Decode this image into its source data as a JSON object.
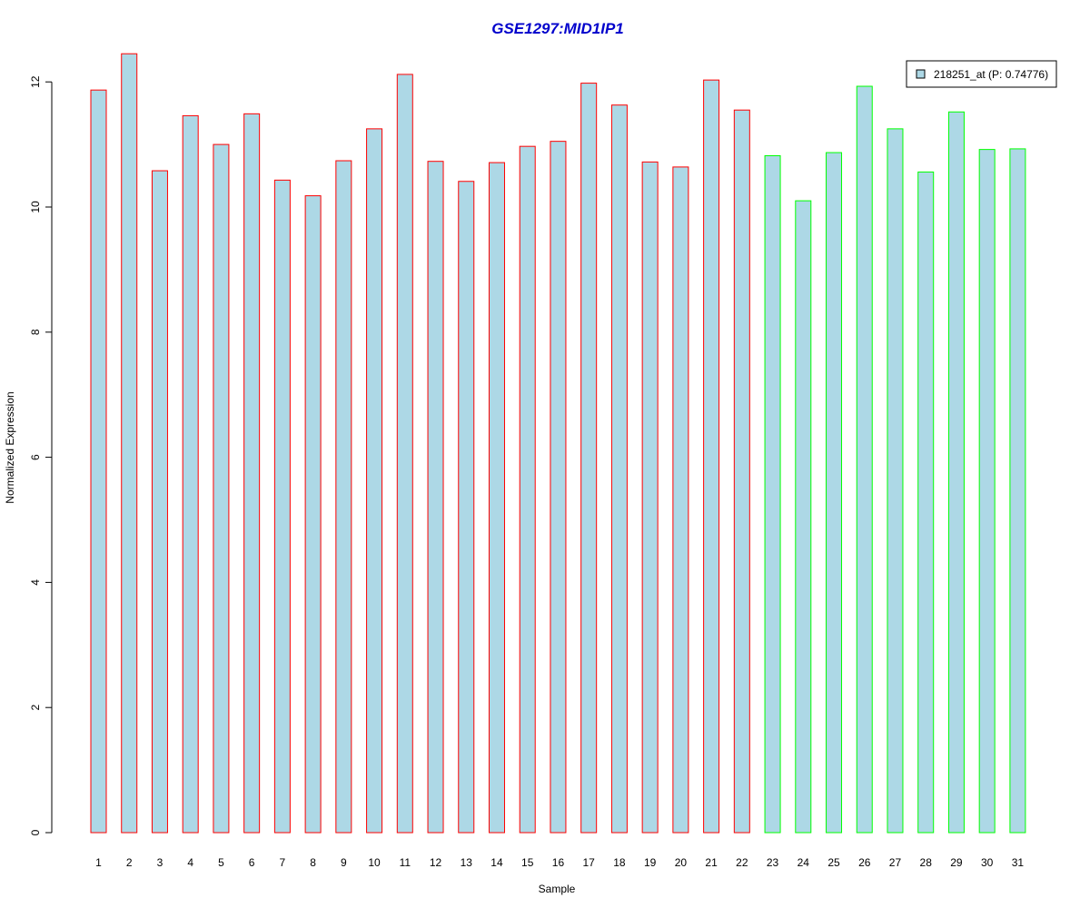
{
  "chart_data": {
    "type": "bar",
    "title": "GSE1297:MID1IP1",
    "xlabel": "Sample",
    "ylabel": "Normalized Expression",
    "ylim": [
      0,
      12.4
    ],
    "y_ticks": [
      0,
      2,
      4,
      6,
      8,
      10,
      12
    ],
    "categories": [
      "1",
      "2",
      "3",
      "4",
      "5",
      "6",
      "7",
      "8",
      "9",
      "10",
      "11",
      "12",
      "13",
      "14",
      "15",
      "16",
      "17",
      "18",
      "19",
      "20",
      "21",
      "22",
      "23",
      "24",
      "25",
      "26",
      "27",
      "28",
      "29",
      "30",
      "31"
    ],
    "values": [
      11.87,
      12.45,
      10.58,
      11.46,
      11.0,
      11.49,
      10.43,
      10.18,
      10.74,
      11.25,
      12.12,
      10.73,
      10.41,
      10.71,
      10.97,
      11.05,
      11.98,
      11.63,
      10.72,
      10.64,
      12.03,
      11.55,
      10.82,
      10.1,
      10.87,
      11.93,
      11.25,
      10.56,
      11.52,
      10.92,
      10.93
    ],
    "groups": [
      "red",
      "red",
      "red",
      "red",
      "red",
      "red",
      "red",
      "red",
      "red",
      "red",
      "red",
      "red",
      "red",
      "red",
      "red",
      "red",
      "red",
      "red",
      "red",
      "red",
      "red",
      "red",
      "green",
      "green",
      "green",
      "green",
      "green",
      "green",
      "green",
      "green",
      "green"
    ],
    "grid": false,
    "legend": {
      "position": "top-right",
      "entries": [
        {
          "label": "218251_at (P: 0.74776)"
        }
      ]
    }
  },
  "colors": {
    "title": "#0000cc",
    "bar_fill": "#add8e6",
    "group_red_border": "#ff0000",
    "group_green_border": "#00ff00",
    "axis": "#000000"
  }
}
